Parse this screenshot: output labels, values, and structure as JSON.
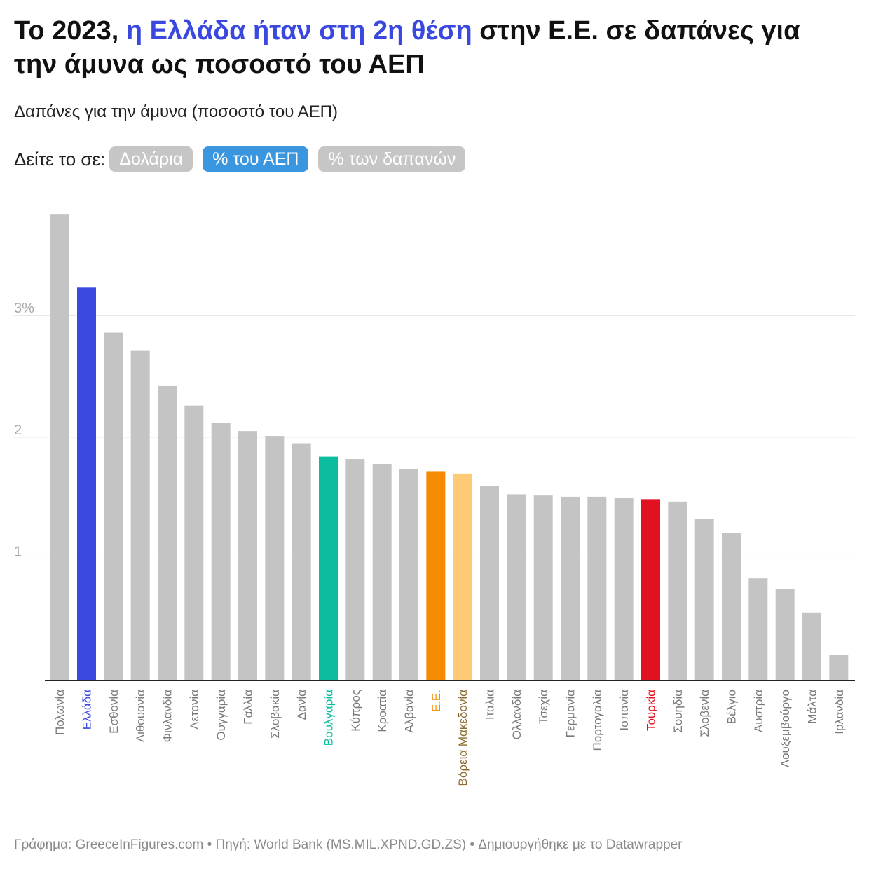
{
  "title": {
    "part1": "Το 2023, ",
    "highlight": "η Ελλάδα ήταν στη 2η θέση",
    "part2": " στην Ε.Ε. σε δαπάνες για την άμυνα ως ποσοστό του ΑΕΠ"
  },
  "subtitle": "Δαπάνες για την άμυνα (ποσοστό του ΑΕΠ)",
  "toggle": {
    "label": "Δείτε το σε:",
    "options": [
      "Δολάρια",
      "% του ΑΕΠ",
      "% των δαπανών"
    ],
    "active_index": 1
  },
  "footer": "Γράφημα: GreeceInFigures.com • Πηγή: World Bank (MS.MIL.XPND.GD.ZS) • Δημιουργήθηκε με το Datawrapper",
  "colors": {
    "default_bar": "#c4c4c4",
    "default_label": "#7a7a7a",
    "greece": "#3a48df",
    "bulgaria": "#0bbc9f",
    "eu": "#f58b00",
    "north_macedonia_bar": "#ffca76",
    "north_macedonia_label": "#8a6d2e",
    "turkey": "#e2111f",
    "gridline": "#e1e1e1",
    "axis": "#222222",
    "tick_label": "#a8a8a8",
    "toggle_active": "#3b96e0",
    "toggle_inactive": "#c6c6c6"
  },
  "chart_data": {
    "type": "bar",
    "categories": [
      "Πολωνία",
      "Ελλάδα",
      "Εσθονία",
      "Λιθουανία",
      "Φινλανδία",
      "Λετονία",
      "Ουγγαρία",
      "Γαλλία",
      "Σλοβακία",
      "Δανία",
      "Βουλγαρία",
      "Κύπρος",
      "Κροατία",
      "Αλβανία",
      "Ε.Ε.",
      "Βόρεια Μακεδονία",
      "Ιταλια",
      "Ολλανδία",
      "Τσεχία",
      "Γερμανία",
      "Πορτογαλία",
      "Ισπανία",
      "Τουρκία",
      "Σουηδία",
      "Σλοβενία",
      "Βέλγιο",
      "Αυστρία",
      "Λουξεμβούργο",
      "Μάλτα",
      "Ιρλανδία"
    ],
    "values": [
      3.83,
      3.23,
      2.86,
      2.71,
      2.42,
      2.26,
      2.12,
      2.05,
      2.01,
      1.95,
      1.84,
      1.82,
      1.78,
      1.74,
      1.72,
      1.7,
      1.6,
      1.53,
      1.52,
      1.51,
      1.51,
      1.5,
      1.49,
      1.47,
      1.33,
      1.21,
      0.84,
      0.75,
      0.56,
      0.21
    ],
    "highlights": {
      "Ελλάδα": "greece",
      "Βουλγαρία": "bulgaria",
      "Ε.Ε.": "eu",
      "Βόρεια Μακεδονία": "north_macedonia",
      "Τουρκία": "turkey"
    },
    "yticks": [
      1,
      2,
      3
    ],
    "ytick_labels": [
      "1",
      "2",
      "3%"
    ],
    "ylim": [
      0,
      3.9
    ],
    "grid": true,
    "legend": "none"
  }
}
